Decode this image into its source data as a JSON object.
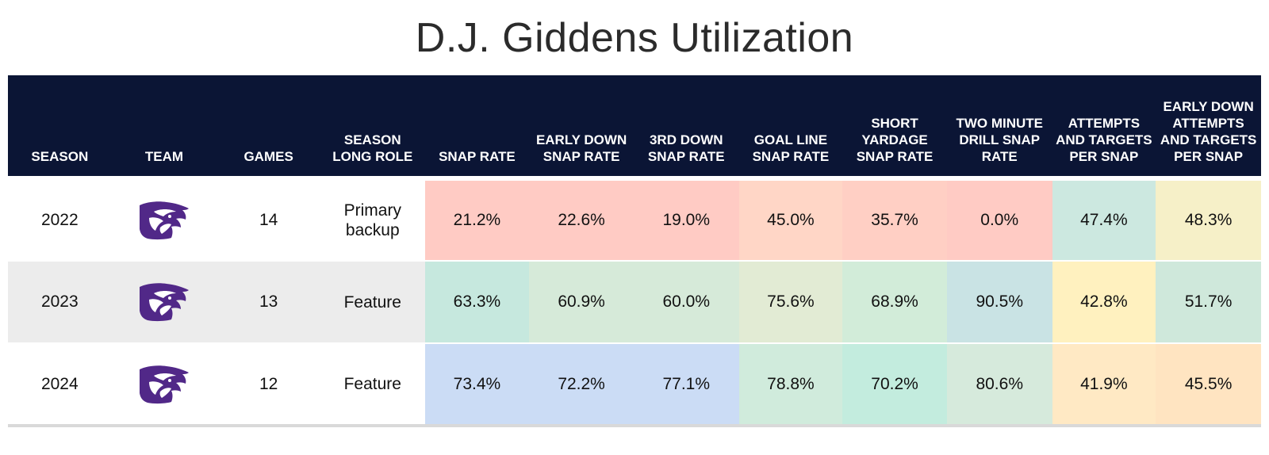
{
  "title": "D.J. Giddens Utilization",
  "chart_data": {
    "type": "table",
    "title": "D.J. Giddens Utilization",
    "columns": [
      "SEASON",
      "TEAM",
      "GAMES",
      "SEASON LONG ROLE",
      "SNAP RATE",
      "EARLY DOWN SNAP RATE",
      "3RD DOWN SNAP RATE",
      "GOAL LINE SNAP RATE",
      "SHORT YARDAGE SNAP RATE",
      "TWO MINUTE DRILL SNAP RATE",
      "ATTEMPTS AND TARGETS PER SNAP",
      "EARLY DOWN ATTEMPTS AND TARGETS PER SNAP"
    ],
    "team_logo_icon": "kansas-state-wildcat-logo-icon",
    "team_color": "#512888",
    "rows": [
      {
        "season": "2022",
        "games": "14",
        "role": "Primary backup",
        "values": [
          "21.2%",
          "22.6%",
          "19.0%",
          "45.0%",
          "35.7%",
          "0.0%",
          "47.4%",
          "48.3%"
        ],
        "colors": [
          "#ffcbc4",
          "#ffcbc4",
          "#ffcbc4",
          "#ffd6c6",
          "#ffcfc4",
          "#ffcbc4",
          "#cce8e0",
          "#f6f0c8"
        ]
      },
      {
        "season": "2023",
        "games": "13",
        "role": "Feature",
        "values": [
          "63.3%",
          "60.9%",
          "60.0%",
          "75.6%",
          "68.9%",
          "90.5%",
          "42.8%",
          "51.7%"
        ],
        "colors": [
          "#c6e8de",
          "#d6ead9",
          "#d6ead9",
          "#e2ebd4",
          "#d2ecd9",
          "#c9e3e4",
          "#fff1bf",
          "#cfe8db"
        ]
      },
      {
        "season": "2024",
        "games": "12",
        "role": "Feature",
        "values": [
          "73.4%",
          "72.2%",
          "77.1%",
          "78.8%",
          "70.2%",
          "80.6%",
          "41.9%",
          "45.5%"
        ],
        "colors": [
          "#cbdcf5",
          "#cbdcf5",
          "#cbdcf5",
          "#d0ebdc",
          "#c3ecde",
          "#d6eadc",
          "#ffe9c4",
          "#ffe4c1"
        ]
      }
    ]
  }
}
